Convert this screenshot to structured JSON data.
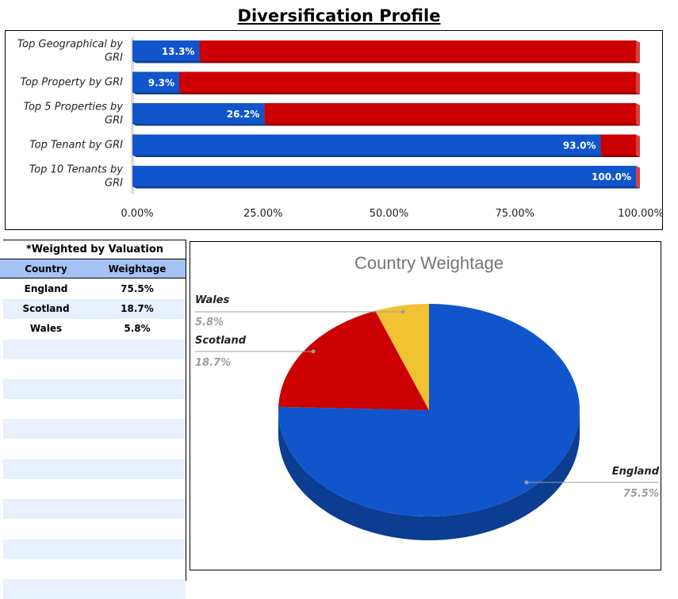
{
  "page_title": "Diversification Profile",
  "bar_chart": {
    "chart_data": {
      "type": "bar",
      "orientation": "horizontal",
      "stacked": true,
      "categories": [
        "Top Geographical by GRI",
        "Top Property by GRI",
        "Top 5 Properties by GRI",
        "Top Tenant by GRI",
        "Top 10 Tenants by GRI"
      ],
      "series": [
        {
          "values": [
            13.3,
            9.3,
            26.2,
            93.0,
            100.0
          ],
          "color": "#1155cc"
        },
        {
          "values": [
            86.7,
            90.7,
            73.8,
            7.0,
            0.0
          ],
          "color": "#cc0000"
        }
      ],
      "data_labels": [
        "13.3%",
        "9.3%",
        "26.2%",
        "93.0%",
        "100.0%"
      ],
      "x_ticks": [
        "0.00%",
        "25.00%",
        "50.00%",
        "75.00%",
        "100.00%"
      ],
      "xlim": [
        0,
        100
      ],
      "legend": "none"
    }
  },
  "table": {
    "caption": "*Weighted by Valuation",
    "headers": [
      "Country",
      "Weightage"
    ],
    "rows": [
      [
        "England",
        "75.5%"
      ],
      [
        "Scotland",
        "18.7%"
      ],
      [
        "Wales",
        "5.8%"
      ]
    ],
    "empty_rows": 13
  },
  "pie_chart": {
    "chart_data": {
      "type": "pie",
      "title": "Country Weightage",
      "labels": [
        "England",
        "Scotland",
        "Wales"
      ],
      "values": [
        75.5,
        18.7,
        5.8
      ],
      "value_labels": [
        "75.5%",
        "18.7%",
        "5.8%"
      ],
      "colors": [
        "#1155cc",
        "#cc0000",
        "#f1c232"
      ],
      "style": "3d",
      "legend": "none"
    }
  },
  "colors": {
    "blue": "#1155cc",
    "blue_dark": "#0b3d91",
    "red": "#cc0000",
    "red_dark": "#8f0000",
    "yellow": "#f1c232",
    "header_fill": "#a4c2f4",
    "row_alt": "#e8f0fe"
  }
}
